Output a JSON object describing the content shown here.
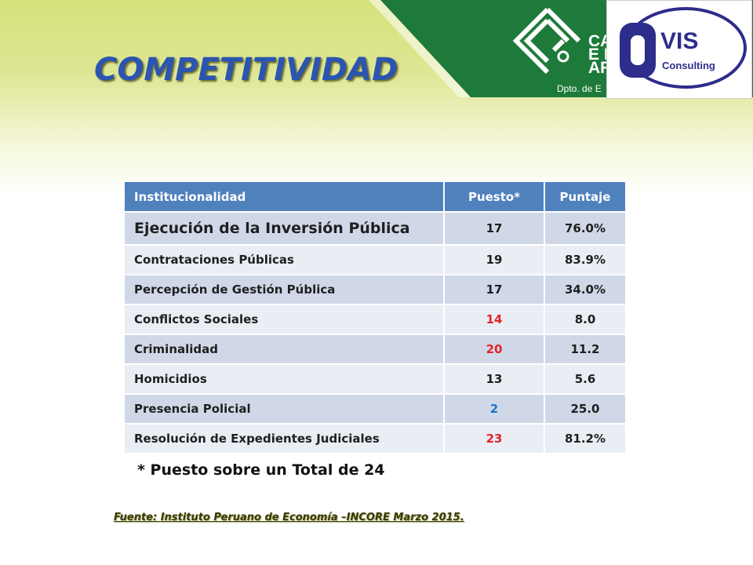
{
  "header": {
    "title": "COMPETITIVIDAD",
    "org_logo_lines": [
      "CA",
      "E I",
      "AR"
    ],
    "org_logo_dept": "Dpto. de E",
    "partner_logo_word": "VIS",
    "partner_logo_sub": "Consulting"
  },
  "colors": {
    "header_green": "#1e7a3a",
    "title_blue": "#2a55b0",
    "table_header": "#4f81bd",
    "rank_red": "#e3232a",
    "rank_blue": "#1a74c8"
  },
  "table": {
    "headers": [
      "Institucionalidad",
      "Puesto*",
      "Puntaje"
    ],
    "rows": [
      {
        "indicator": "Ejecución de la Inversión Pública",
        "rank": "17",
        "score": "76.0%"
      },
      {
        "indicator": "Contrataciones Públicas",
        "rank": "19",
        "score": "83.9%"
      },
      {
        "indicator": "Percepción de Gestión Pública",
        "rank": "17",
        "score": "34.0%"
      },
      {
        "indicator": "Conflictos Sociales",
        "rank": "14",
        "score": "8.0"
      },
      {
        "indicator": "Criminalidad",
        "rank": "20",
        "score": "11.2"
      },
      {
        "indicator": "Homicidios",
        "rank": "13",
        "score": "5.6"
      },
      {
        "indicator": "Presencia  Policial",
        "rank": "2",
        "score": "25.0"
      },
      {
        "indicator": "Resolución de Expedientes Judiciales",
        "rank": "23",
        "score": "81.2%"
      }
    ]
  },
  "footnote": "* Puesto sobre un Total de 24",
  "source": "Fuente: Instituto Peruano de Economía –INCORE Marzo 2015."
}
